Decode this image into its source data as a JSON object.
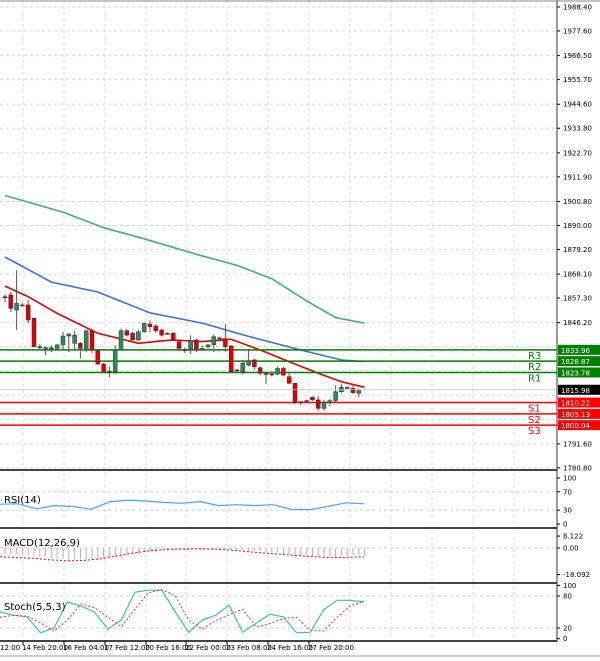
{
  "colors": {
    "bull": "#2e8b57",
    "bear": "#e00000",
    "resistance": "#008000",
    "support": "#ff0000",
    "ma_fast": "#e00000",
    "ma_mid": "#3b6fe0",
    "ma_slow": "#3cb371",
    "rsi": "#4aa3ff",
    "macd_signal": "#ff0000",
    "stoch_main": "#40c0b0",
    "stoch_signal": "#ff3030",
    "last_price_bg": "#000000"
  },
  "price_axis": {
    "ticks": [
      "1988.40",
      "1977.60",
      "1966.50",
      "1955.70",
      "1944.60",
      "1933.80",
      "1922.70",
      "1911.90",
      "1900.80",
      "1890.00",
      "1879.20",
      "1868.10",
      "1857.30",
      "1846.20",
      "1791.60",
      "1780.80"
    ],
    "last_price": "1815.98"
  },
  "levels": [
    {
      "name": "R3",
      "value": "1833.96",
      "type": "resistance"
    },
    {
      "name": "R2",
      "value": "1828.87",
      "type": "resistance"
    },
    {
      "name": "R1",
      "value": "1823.78",
      "type": "resistance"
    },
    {
      "name": "S1",
      "value": "1810.22",
      "type": "support"
    },
    {
      "name": "S2",
      "value": "1805.13",
      "type": "support"
    },
    {
      "name": "S3",
      "value": "1800.04",
      "type": "support"
    }
  ],
  "time_axis": [
    "12:00",
    "14 Feb 20:00",
    "16 Feb 04:00",
    "17 Feb 12:00",
    "20 Feb 16:00",
    "22 Feb 00:00",
    "23 Feb 08:00",
    "24 Feb 16:00",
    "27 Feb 20:00"
  ],
  "chart_data": {
    "type": "candlestick",
    "ohlc": [
      [
        1857.9,
        1859.0,
        1855.5,
        1857.6
      ],
      [
        1858.7,
        1860.0,
        1851.0,
        1852.7
      ],
      [
        1851.9,
        1869.9,
        1843.0,
        1854.9
      ],
      [
        1854.2,
        1855.0,
        1853.5,
        1854.0
      ],
      [
        1854.2,
        1856.5,
        1846.0,
        1847.4
      ],
      [
        1848.2,
        1848.5,
        1835.2,
        1835.4
      ],
      [
        1835.4,
        1836.5,
        1834.0,
        1835.2
      ],
      [
        1834.6,
        1835.5,
        1831.5,
        1835.0
      ],
      [
        1834.8,
        1836.0,
        1833.0,
        1834.9
      ],
      [
        1834.6,
        1836.5,
        1834.0,
        1836.2
      ],
      [
        1836.2,
        1842.0,
        1834.0,
        1840.2
      ],
      [
        1840.2,
        1841.5,
        1833.0,
        1841.1
      ],
      [
        1836.9,
        1842.5,
        1834.0,
        1840.6
      ],
      [
        1836.9,
        1837.5,
        1830.0,
        1834.6
      ],
      [
        1833.9,
        1843.0,
        1833.0,
        1842.6
      ],
      [
        1842.6,
        1843.5,
        1832.5,
        1833.9
      ],
      [
        1833.6,
        1834.0,
        1827.0,
        1827.6
      ],
      [
        1827.6,
        1828.0,
        1823.8,
        1824.1
      ],
      [
        1824.3,
        1826.5,
        1821.5,
        1824.1
      ],
      [
        1824.1,
        1836.0,
        1823.0,
        1833.9
      ],
      [
        1833.9,
        1843.5,
        1833.5,
        1842.6
      ],
      [
        1842.6,
        1843.2,
        1840.0,
        1840.6
      ],
      [
        1841.4,
        1842.0,
        1838.2,
        1838.4
      ],
      [
        1838.4,
        1843.0,
        1838.0,
        1842.1
      ],
      [
        1842.1,
        1846.2,
        1841.5,
        1845.9
      ],
      [
        1845.6,
        1847.2,
        1842.0,
        1844.4
      ],
      [
        1844.7,
        1845.5,
        1841.5,
        1842.6
      ],
      [
        1842.9,
        1843.5,
        1840.0,
        1840.6
      ],
      [
        1841.4,
        1841.8,
        1840.8,
        1841.2
      ],
      [
        1841.4,
        1842.0,
        1838.0,
        1838.4
      ],
      [
        1837.7,
        1838.0,
        1833.5,
        1834.6
      ],
      [
        1834.0,
        1835.0,
        1832.5,
        1833.9
      ],
      [
        1834.0,
        1840.5,
        1832.0,
        1838.1
      ],
      [
        1838.4,
        1839.0,
        1833.0,
        1833.9
      ],
      [
        1834.0,
        1836.0,
        1833.5,
        1834.6
      ],
      [
        1835.4,
        1836.5,
        1834.5,
        1836.2
      ],
      [
        1836.2,
        1841.0,
        1833.0,
        1839.9
      ],
      [
        1839.1,
        1840.0,
        1838.5,
        1839.3
      ],
      [
        1839.0,
        1845.5,
        1833.0,
        1835.4
      ],
      [
        1835.7,
        1836.0,
        1823.5,
        1824.1
      ],
      [
        1824.9,
        1825.5,
        1823.5,
        1824.6
      ],
      [
        1824.1,
        1829.5,
        1823.0,
        1827.9
      ],
      [
        1827.1,
        1834.0,
        1826.5,
        1829.1
      ],
      [
        1829.4,
        1830.0,
        1825.0,
        1826.4
      ],
      [
        1825.9,
        1826.5,
        1822.5,
        1823.4
      ],
      [
        1823.4,
        1824.0,
        1818.5,
        1823.3
      ],
      [
        1823.1,
        1823.6,
        1822.0,
        1823.0
      ],
      [
        1823.1,
        1826.5,
        1822.5,
        1825.6
      ],
      [
        1825.6,
        1826.4,
        1822.0,
        1822.6
      ],
      [
        1821.9,
        1823.5,
        1818.5,
        1818.9
      ],
      [
        1818.9,
        1819.0,
        1809.5,
        1810.2
      ],
      [
        1810.6,
        1811.0,
        1809.0,
        1810.4
      ],
      [
        1811.1,
        1811.5,
        1810.5,
        1811.0
      ],
      [
        1812.6,
        1813.0,
        1811.0,
        1811.4
      ],
      [
        1811.4,
        1813.0,
        1806.5,
        1807.6
      ],
      [
        1807.6,
        1811.5,
        1806.8,
        1810.2
      ],
      [
        1810.2,
        1811.8,
        1808.5,
        1811.1
      ],
      [
        1811.1,
        1818.0,
        1810.0,
        1815.1
      ],
      [
        1815.1,
        1818.5,
        1814.5,
        1817.1
      ],
      [
        1817.0,
        1817.5,
        1816.4,
        1816.8
      ],
      [
        1816.6,
        1818.0,
        1814.0,
        1814.7
      ],
      [
        1814.4,
        1816.5,
        1812.5,
        1815.98
      ]
    ],
    "moving_averages": [
      {
        "color": "ma_slow",
        "points": [
          [
            0,
            1903.5
          ],
          [
            10,
            1896
          ],
          [
            17,
            1889
          ],
          [
            24,
            1884
          ],
          [
            33,
            1877
          ],
          [
            40,
            1872
          ],
          [
            46,
            1866
          ],
          [
            52,
            1856
          ],
          [
            57,
            1848.5
          ],
          [
            62,
            1846
          ]
        ]
      },
      {
        "color": "ma_mid",
        "points": [
          [
            0,
            1875.8
          ],
          [
            8,
            1864.5
          ],
          [
            16,
            1860
          ],
          [
            25,
            1850.6
          ],
          [
            34,
            1846
          ],
          [
            42,
            1840
          ],
          [
            51,
            1833.9
          ],
          [
            58,
            1829.4
          ],
          [
            62,
            1828.7
          ]
        ]
      },
      {
        "color": "ma_fast",
        "points": [
          [
            0,
            1862.7
          ],
          [
            4,
            1857.9
          ],
          [
            9,
            1850.4
          ],
          [
            16,
            1841.4
          ],
          [
            23,
            1836.9
          ],
          [
            27,
            1838
          ],
          [
            29,
            1838.4
          ],
          [
            34,
            1837.7
          ],
          [
            39,
            1838.7
          ],
          [
            44,
            1833.9
          ],
          [
            49,
            1828.6
          ],
          [
            54,
            1823.4
          ],
          [
            58,
            1819.6
          ],
          [
            62,
            1817.1
          ]
        ]
      }
    ],
    "indicators": {
      "rsi": {
        "label": "RSI(14)",
        "ticks": [
          "100",
          "70",
          "30",
          "0"
        ],
        "values": [
          43,
          44,
          33,
          40,
          38,
          32,
          48,
          52,
          50,
          47,
          45,
          49,
          40,
          42,
          40,
          42,
          32,
          31,
          38,
          46,
          44
        ]
      },
      "macd": {
        "label": "MACD(12,26,9)",
        "ticks": [
          "8.122",
          "0.00",
          "-18.092"
        ],
        "histogram": [
          -4,
          -5,
          -6,
          -7,
          -8,
          -8,
          -7,
          -6,
          -4,
          -3,
          -2,
          -1.5,
          -1,
          -1,
          -1.2,
          -1.5,
          -2,
          -3,
          -4,
          -5,
          -6,
          -6,
          -5,
          -5
        ],
        "signal": [
          -6,
          -6.5,
          -7,
          -8,
          -8.7,
          -8.5,
          -7.5,
          -5.5,
          -3.5,
          -2,
          -1,
          -0.7,
          -0.6,
          -0.8,
          -1.5,
          -2.5,
          -3.5,
          -4.3,
          -5.2,
          -6,
          -6.5,
          -6.4,
          -6
        ]
      },
      "stoch": {
        "label": "Stoch(5,5,3)",
        "ticks": [
          "100",
          "80",
          "20",
          "0"
        ],
        "main": [
          50,
          44,
          41,
          11,
          20,
          69,
          61,
          50,
          18,
          35,
          87,
          91,
          91,
          50,
          12,
          35,
          44,
          63,
          12,
          29,
          46,
          41,
          11,
          12,
          54,
          72,
          72,
          69
        ],
        "signal": [
          40,
          44,
          42,
          30,
          14,
          35,
          65,
          58,
          40,
          22,
          55,
          86,
          92,
          80,
          35,
          18,
          34,
          45,
          55,
          22,
          28,
          38,
          40,
          16,
          14,
          40,
          62,
          70
        ]
      }
    }
  }
}
